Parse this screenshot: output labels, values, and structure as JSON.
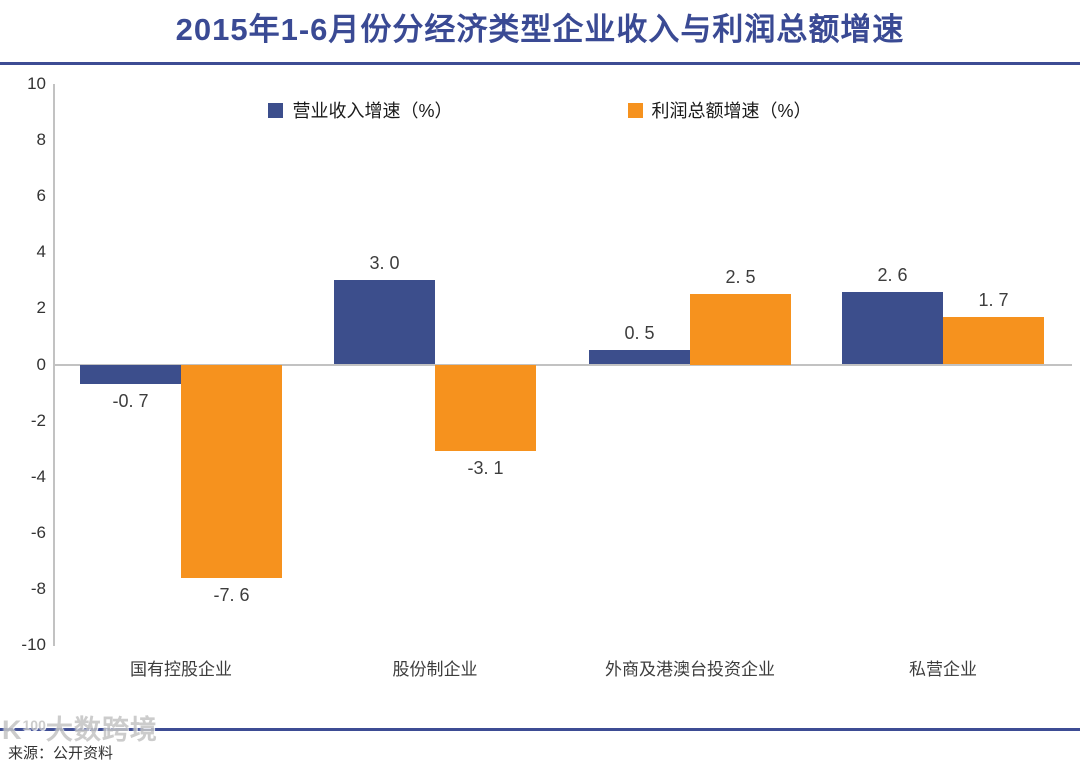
{
  "header": {
    "title": "2015年1-6月份分经济类型企业收入与利润总额增速",
    "accent_color": "#3A4A94"
  },
  "chart_data": {
    "type": "bar",
    "title": "2015年1-6月份分经济类型企业收入与利润总额增速",
    "categories": [
      "国有控股企业",
      "股份制企业",
      "外商及港澳台投资企业",
      "私营企业"
    ],
    "series": [
      {
        "name": "营业收入增速（%）",
        "color": "#3C4E8C",
        "values": [
          -0.7,
          3.0,
          0.5,
          2.6
        ],
        "labels": [
          "-0. 7",
          "3. 0",
          "0. 5",
          "2. 6"
        ]
      },
      {
        "name": "利润总额增速（%）",
        "color": "#F6921E",
        "values": [
          -7.6,
          -3.1,
          2.5,
          1.7
        ],
        "labels": [
          "-7. 6",
          "-3. 1",
          "2. 5",
          "1. 7"
        ]
      }
    ],
    "xlabel": "",
    "ylabel": "",
    "ylim": [
      -10,
      10
    ],
    "yticks": [
      10,
      8,
      6,
      4,
      2,
      0,
      -2,
      -4,
      -6,
      -8,
      -10
    ],
    "grid": false,
    "legend_position": "top-center",
    "axis_color": "#C2C2C2"
  },
  "footer": {
    "source": "来源：公开资料",
    "watermark": {
      "prefix": "K",
      "sup": "100",
      "text": "大数跨境"
    }
  }
}
